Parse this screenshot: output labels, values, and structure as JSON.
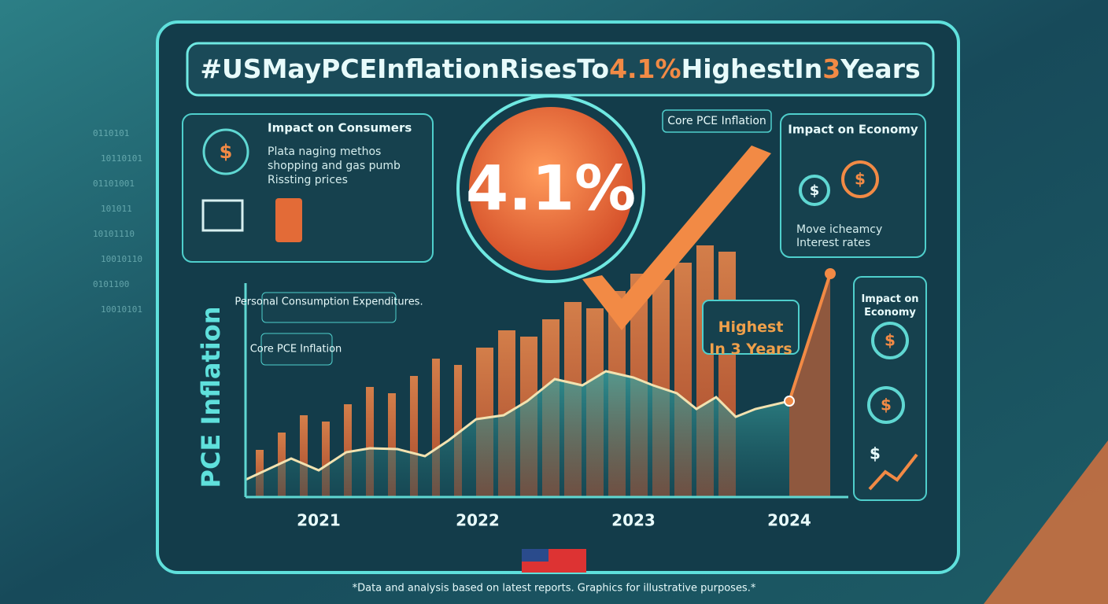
{
  "header": {
    "title": {
      "lead": "#USMayPCEInflationRisesTo",
      "figure": "4.1%",
      "middle": "HighestIn",
      "years": "3",
      "tail": "Years"
    }
  },
  "consumers_panel": {
    "heading": "Impact on Consumers",
    "bullets": [
      "Plata naging methos",
      "shopping and gas pumb",
      "Rissting prices"
    ]
  },
  "headline_badge": "4.1%",
  "core_callout": "Core PCE Inflation",
  "economy_panel": {
    "heading": "Impact on Economy",
    "bullets": [
      "Move icheamcy",
      "Interest rates"
    ]
  },
  "side_panel": {
    "heading": "Impact on Economy"
  },
  "currency_symbol": "$",
  "chart": {
    "axis_label": "PCE Inflation",
    "annotations": [
      "Personal Consumption Expenditures.",
      "Core PCE Inflation",
      "Highest In 3 Years"
    ],
    "x_labels": [
      "2021",
      "2022",
      "2023",
      "2024"
    ]
  },
  "binary": [
    "0110101",
    "10110101",
    "01101001",
    "101011",
    "10101110",
    "10010110",
    "0101100",
    "10010101"
  ],
  "footnote": "*Data and analysis based on latest reports. Graphics for illustrative purposes.*"
}
